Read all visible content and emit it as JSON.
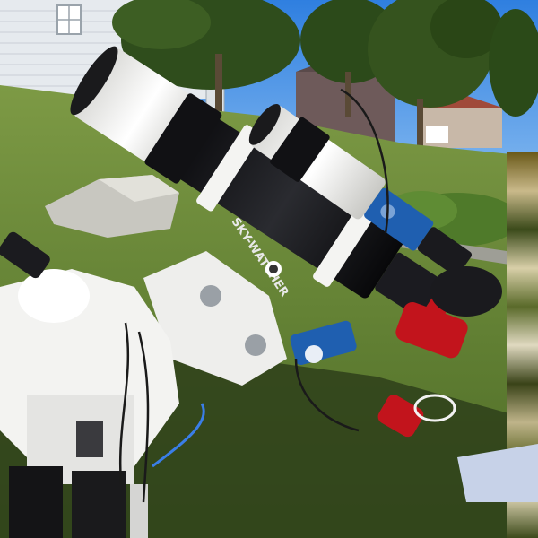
{
  "photo": {
    "subject": "telescope-on-mount",
    "brand_text": "SKY-WATCHER",
    "colors": {
      "sky": "#3f8de0",
      "grass": "#6e8f3c",
      "grass_dark": "#4e6a2a",
      "tube_white": "#f2f2f0",
      "tube_black": "#15161a",
      "accent_red": "#c2141c",
      "accent_blue": "#1f5fb0",
      "house_siding": "#e9ecef",
      "tree": "#2f4a1c",
      "shadow": "#2b3a1a"
    }
  }
}
